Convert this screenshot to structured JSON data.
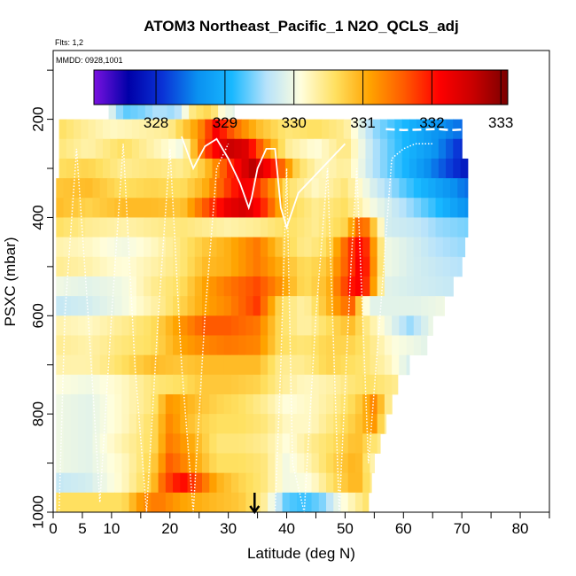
{
  "title": "ATOM3 Northeast_Pacific_1 N2O_QCLS_adj",
  "flights_label": "Flts: 1,2",
  "mmdd_label": "MMDD: 0928,1001",
  "chart_data": {
    "type": "heatmap",
    "title": "ATOM3 Northeast_Pacific_1 N2O_QCLS_adj",
    "xlabel": "Latitude (deg N)",
    "ylabel": "PSXC (mbar)",
    "xlim": [
      0,
      85
    ],
    "ylim": [
      1000,
      60
    ],
    "x_ticks": [
      0,
      5,
      10,
      20,
      30,
      40,
      50,
      60,
      70,
      80
    ],
    "y_ticks": [
      200,
      400,
      600,
      800,
      1000
    ],
    "colorbar": {
      "ticks": [
        328,
        329,
        330,
        331,
        332,
        333
      ],
      "range": [
        327.1,
        333.1
      ],
      "colors": [
        "#7a12e0",
        "#0000a8",
        "#0a33d6",
        "#0a90f0",
        "#18b8ff",
        "#b6e2fb",
        "#fffedd",
        "#ffe060",
        "#ffa300",
        "#ff5a00",
        "#ff0000",
        "#c80000",
        "#7a0000"
      ]
    },
    "layers": [
      {
        "p_top": 160,
        "p_bot": 200,
        "x_start": 9.5,
        "x_end": 31.0,
        "x": [
          9.5,
          12,
          15,
          18,
          21,
          24,
          27,
          29,
          31
        ],
        "values": [
          330.0,
          329.3,
          329.4,
          329.6,
          329.5,
          330.5,
          330.7,
          330.1,
          329.9
        ]
      },
      {
        "p_top": 200,
        "p_bot": 240,
        "x_start": 1.0,
        "x_end": 70.0,
        "x": [
          1,
          5,
          10,
          15,
          20,
          25,
          28,
          31,
          35,
          40,
          45,
          50,
          55,
          60,
          65,
          70
        ],
        "values": [
          330.6,
          330.4,
          330.2,
          330.3,
          330.4,
          331.2,
          332.2,
          331.5,
          330.9,
          330.5,
          330.6,
          330.4,
          329.5,
          329.1,
          328.7,
          328.4
        ]
      },
      {
        "p_top": 240,
        "p_bot": 280,
        "x_start": 1.0,
        "x_end": 70.0,
        "x": [
          1,
          6,
          12,
          17,
          22,
          26,
          30,
          33,
          36,
          40,
          45,
          50,
          55,
          60,
          65,
          70
        ],
        "values": [
          330.5,
          330.3,
          330.6,
          330.3,
          330.0,
          331.7,
          332.6,
          332.4,
          331.4,
          330.4,
          330.1,
          330.5,
          329.6,
          329.1,
          328.7,
          328.0
        ]
      },
      {
        "p_top": 280,
        "p_bot": 320,
        "x_start": 1.0,
        "x_end": 71.0,
        "x": [
          1,
          6,
          12,
          17,
          22,
          26,
          30,
          34,
          38,
          42,
          46,
          50,
          55,
          60,
          65,
          71
        ],
        "values": [
          330.6,
          330.7,
          330.4,
          330.5,
          330.4,
          330.8,
          331.8,
          332.7,
          331.9,
          330.6,
          330.2,
          330.4,
          329.6,
          329.1,
          328.5,
          327.8
        ]
      },
      {
        "p_top": 320,
        "p_bot": 360,
        "x_start": 0.5,
        "x_end": 71.0,
        "x": [
          0.5,
          6,
          12,
          17,
          22,
          26,
          30,
          33,
          36,
          40,
          45,
          50,
          55,
          60,
          65,
          71
        ],
        "values": [
          330.8,
          330.9,
          330.6,
          330.7,
          330.6,
          331.0,
          331.8,
          332.3,
          331.6,
          330.6,
          330.2,
          330.5,
          329.8,
          329.3,
          328.9,
          328.4
        ]
      },
      {
        "p_top": 360,
        "p_bot": 400,
        "x_start": 0.5,
        "x_end": 71.0,
        "x": [
          0.5,
          6,
          12,
          17,
          22,
          26,
          30,
          33,
          36,
          40,
          45,
          50,
          55,
          60,
          65,
          71
        ],
        "values": [
          330.9,
          330.7,
          330.9,
          330.9,
          330.8,
          331.6,
          332.3,
          332.5,
          331.9,
          330.7,
          330.4,
          330.6,
          330.0,
          329.6,
          329.2,
          328.6
        ]
      },
      {
        "p_top": 400,
        "p_bot": 440,
        "x_start": 0.5,
        "x_end": 71.0,
        "x": [
          0.5,
          6,
          12,
          17,
          22,
          26,
          30,
          35,
          40,
          45,
          50,
          53,
          57,
          62,
          66,
          71
        ],
        "values": [
          330.6,
          330.4,
          330.3,
          330.4,
          330.5,
          330.4,
          330.3,
          330.4,
          330.6,
          330.4,
          330.7,
          331.7,
          329.8,
          329.7,
          329.5,
          329.4
        ]
      },
      {
        "p_top": 440,
        "p_bot": 480,
        "x_start": 0.5,
        "x_end": 70.5,
        "x": [
          0.5,
          6,
          12,
          17,
          22,
          26,
          30,
          35,
          39,
          43,
          47,
          51,
          53,
          57,
          62,
          66,
          70.5
        ],
        "values": [
          330.3,
          330.2,
          330.0,
          330.2,
          330.5,
          330.8,
          331.0,
          331.4,
          330.8,
          330.4,
          330.6,
          331.8,
          332.2,
          330.0,
          329.8,
          329.6,
          329.5
        ]
      },
      {
        "p_top": 480,
        "p_bot": 520,
        "x_start": 0.5,
        "x_end": 70.0,
        "x": [
          0.5,
          6,
          12,
          17,
          22,
          26,
          30,
          35,
          39,
          43,
          47,
          51,
          53,
          57,
          62,
          66,
          70
        ],
        "values": [
          330.4,
          330.3,
          330.1,
          330.3,
          330.5,
          330.9,
          331.0,
          331.4,
          331.0,
          330.6,
          330.8,
          331.8,
          332.3,
          330.0,
          329.8,
          329.7,
          329.6
        ]
      },
      {
        "p_top": 520,
        "p_bot": 560,
        "x_start": 0.5,
        "x_end": 68.5,
        "x": [
          0.5,
          6,
          12,
          17,
          22,
          26,
          30,
          35,
          39,
          43,
          47,
          51,
          53,
          57,
          62,
          68.5
        ],
        "values": [
          330.0,
          329.9,
          330.0,
          330.4,
          330.6,
          331.1,
          331.4,
          331.7,
          331.2,
          330.6,
          330.9,
          332.0,
          332.2,
          329.9,
          329.8,
          329.7
        ]
      },
      {
        "p_top": 560,
        "p_bot": 600,
        "x_start": 0.5,
        "x_end": 67.0,
        "x": [
          0.5,
          6,
          12,
          17,
          22,
          26,
          30,
          35,
          39,
          43,
          47,
          51,
          54,
          58,
          62,
          67
        ],
        "values": [
          329.7,
          329.8,
          330.0,
          330.3,
          330.7,
          331.1,
          331.3,
          331.8,
          330.6,
          330.3,
          330.9,
          331.6,
          329.9,
          329.9,
          329.9,
          330.0
        ]
      },
      {
        "p_top": 600,
        "p_bot": 640,
        "x_start": 0.5,
        "x_end": 65.0,
        "x": [
          0.5,
          6,
          12,
          17,
          22,
          26,
          30,
          35,
          39,
          43,
          47,
          51,
          54,
          58,
          61,
          65
        ],
        "values": [
          330.3,
          330.2,
          330.4,
          330.6,
          331.2,
          331.6,
          331.6,
          331.4,
          330.6,
          330.3,
          330.6,
          330.9,
          330.4,
          329.9,
          329.5,
          330.0
        ]
      },
      {
        "p_top": 640,
        "p_bot": 680,
        "x_start": 0.5,
        "x_end": 64.0,
        "x": [
          0.5,
          6,
          12,
          17,
          22,
          26,
          30,
          35,
          39,
          43,
          47,
          51,
          54,
          58,
          64
        ],
        "values": [
          330.4,
          330.3,
          330.5,
          330.6,
          331.1,
          331.3,
          331.4,
          331.3,
          330.6,
          330.5,
          330.7,
          330.7,
          330.5,
          330.1,
          329.9
        ]
      },
      {
        "p_top": 680,
        "p_bot": 720,
        "x_start": 0.5,
        "x_end": 61.0,
        "x": [
          0.5,
          6,
          12,
          17,
          22,
          26,
          30,
          35,
          39,
          43,
          47,
          51,
          54,
          58,
          61
        ],
        "values": [
          330.3,
          330.3,
          330.6,
          330.9,
          330.8,
          330.9,
          330.9,
          330.9,
          330.4,
          330.4,
          330.7,
          330.6,
          330.5,
          330.2,
          329.8
        ]
      },
      {
        "p_top": 720,
        "p_bot": 760,
        "x_start": 0.5,
        "x_end": 59.0,
        "x": [
          0.5,
          6,
          12,
          17,
          22,
          26,
          30,
          35,
          39,
          43,
          47,
          51,
          54,
          59
        ],
        "values": [
          330.1,
          330.0,
          330.2,
          330.5,
          330.6,
          330.8,
          330.8,
          330.7,
          330.4,
          330.2,
          330.3,
          330.5,
          330.6,
          330.4
        ]
      },
      {
        "p_top": 760,
        "p_bot": 800,
        "x_start": 0.5,
        "x_end": 58.0,
        "x": [
          0.5,
          6,
          12,
          17,
          20,
          24,
          28,
          32,
          36,
          40,
          44,
          48,
          52,
          55,
          58
        ],
        "values": [
          330.0,
          329.9,
          330.2,
          330.5,
          331.2,
          330.9,
          330.7,
          330.6,
          330.4,
          330.1,
          330.2,
          330.4,
          330.7,
          331.3,
          330.2
        ]
      },
      {
        "p_top": 800,
        "p_bot": 840,
        "x_start": 0.5,
        "x_end": 57.0,
        "x": [
          0.5,
          6,
          12,
          17,
          20,
          24,
          28,
          32,
          36,
          40,
          44,
          48,
          52,
          55,
          57
        ],
        "values": [
          330.0,
          329.9,
          330.2,
          330.6,
          331.3,
          330.8,
          330.6,
          330.6,
          330.5,
          330.2,
          330.2,
          330.5,
          330.8,
          331.2,
          330.3
        ]
      },
      {
        "p_top": 840,
        "p_bot": 880,
        "x_start": 0.5,
        "x_end": 56.0,
        "x": [
          0.5,
          6,
          12,
          17,
          20,
          24,
          28,
          32,
          36,
          40,
          44,
          48,
          52,
          56
        ],
        "values": [
          330.0,
          329.9,
          330.3,
          330.6,
          331.4,
          331.0,
          330.5,
          330.5,
          330.4,
          330.1,
          330.4,
          330.6,
          330.9,
          330.4
        ]
      },
      {
        "p_top": 880,
        "p_bot": 920,
        "x_start": 0.5,
        "x_end": 55.0,
        "x": [
          0.5,
          6,
          12,
          17,
          20,
          24,
          28,
          32,
          36,
          40,
          44,
          48,
          52,
          55
        ],
        "values": [
          330.0,
          329.9,
          330.2,
          330.7,
          331.6,
          331.1,
          330.6,
          330.6,
          330.5,
          330.0,
          330.3,
          330.7,
          331.0,
          330.2
        ]
      },
      {
        "p_top": 920,
        "p_bot": 960,
        "x_start": 0.5,
        "x_end": 54.5,
        "x": [
          0.5,
          6,
          12,
          17,
          19,
          22,
          25,
          28,
          32,
          36,
          40,
          44,
          48,
          52,
          54.5
        ],
        "values": [
          329.7,
          329.8,
          330.2,
          330.8,
          331.6,
          332.1,
          331.6,
          331.0,
          330.7,
          330.5,
          330.0,
          330.1,
          330.6,
          331.0,
          330.4
        ]
      },
      {
        "p_top": 960,
        "p_bot": 1000,
        "x_start": 0.5,
        "x_end": 54.0,
        "x": [
          0.5,
          6,
          12,
          15,
          18,
          22,
          25,
          28,
          32,
          36,
          40,
          43,
          46,
          49,
          54
        ],
        "values": [
          330.6,
          330.6,
          330.6,
          331.2,
          331.4,
          331.1,
          331.0,
          330.9,
          330.8,
          330.4,
          329.3,
          329.2,
          329.4,
          330.0,
          330.6
        ]
      }
    ],
    "flight_tracks": [
      {
        "style": "solid",
        "lat": [
          22,
          24,
          26,
          28,
          30,
          32,
          33.5,
          34,
          35,
          36.5,
          38,
          39,
          40,
          42,
          46,
          50
        ],
        "psxc": [
          235,
          300,
          255,
          240,
          280,
          330,
          380,
          360,
          300,
          260,
          260,
          380,
          420,
          350,
          300,
          250
        ]
      },
      {
        "style": "dotted",
        "lat": [
          1,
          2,
          4,
          6,
          8,
          10,
          12,
          14,
          16,
          18,
          20,
          22,
          24,
          26,
          28,
          30
        ],
        "psxc": [
          1000,
          600,
          260,
          600,
          980,
          600,
          250,
          700,
          1000,
          600,
          260,
          700,
          1000,
          600,
          300,
          250
        ]
      },
      {
        "style": "dotted",
        "lat": [
          38,
          39,
          40,
          41,
          43,
          45,
          47,
          49,
          51,
          52,
          54,
          56,
          58,
          60,
          62,
          65
        ],
        "psxc": [
          1000,
          700,
          300,
          900,
          1000,
          600,
          300,
          1000,
          500,
          300,
          900,
          600,
          280,
          260,
          250,
          250
        ]
      },
      {
        "style": "dashed",
        "lat": [
          57,
          60,
          63,
          66,
          68,
          70
        ],
        "psxc": [
          220,
          222,
          221,
          220,
          222,
          221
        ]
      }
    ],
    "marker": {
      "type": "arrow-down",
      "lat": 34.5,
      "psxc": 1000
    }
  }
}
